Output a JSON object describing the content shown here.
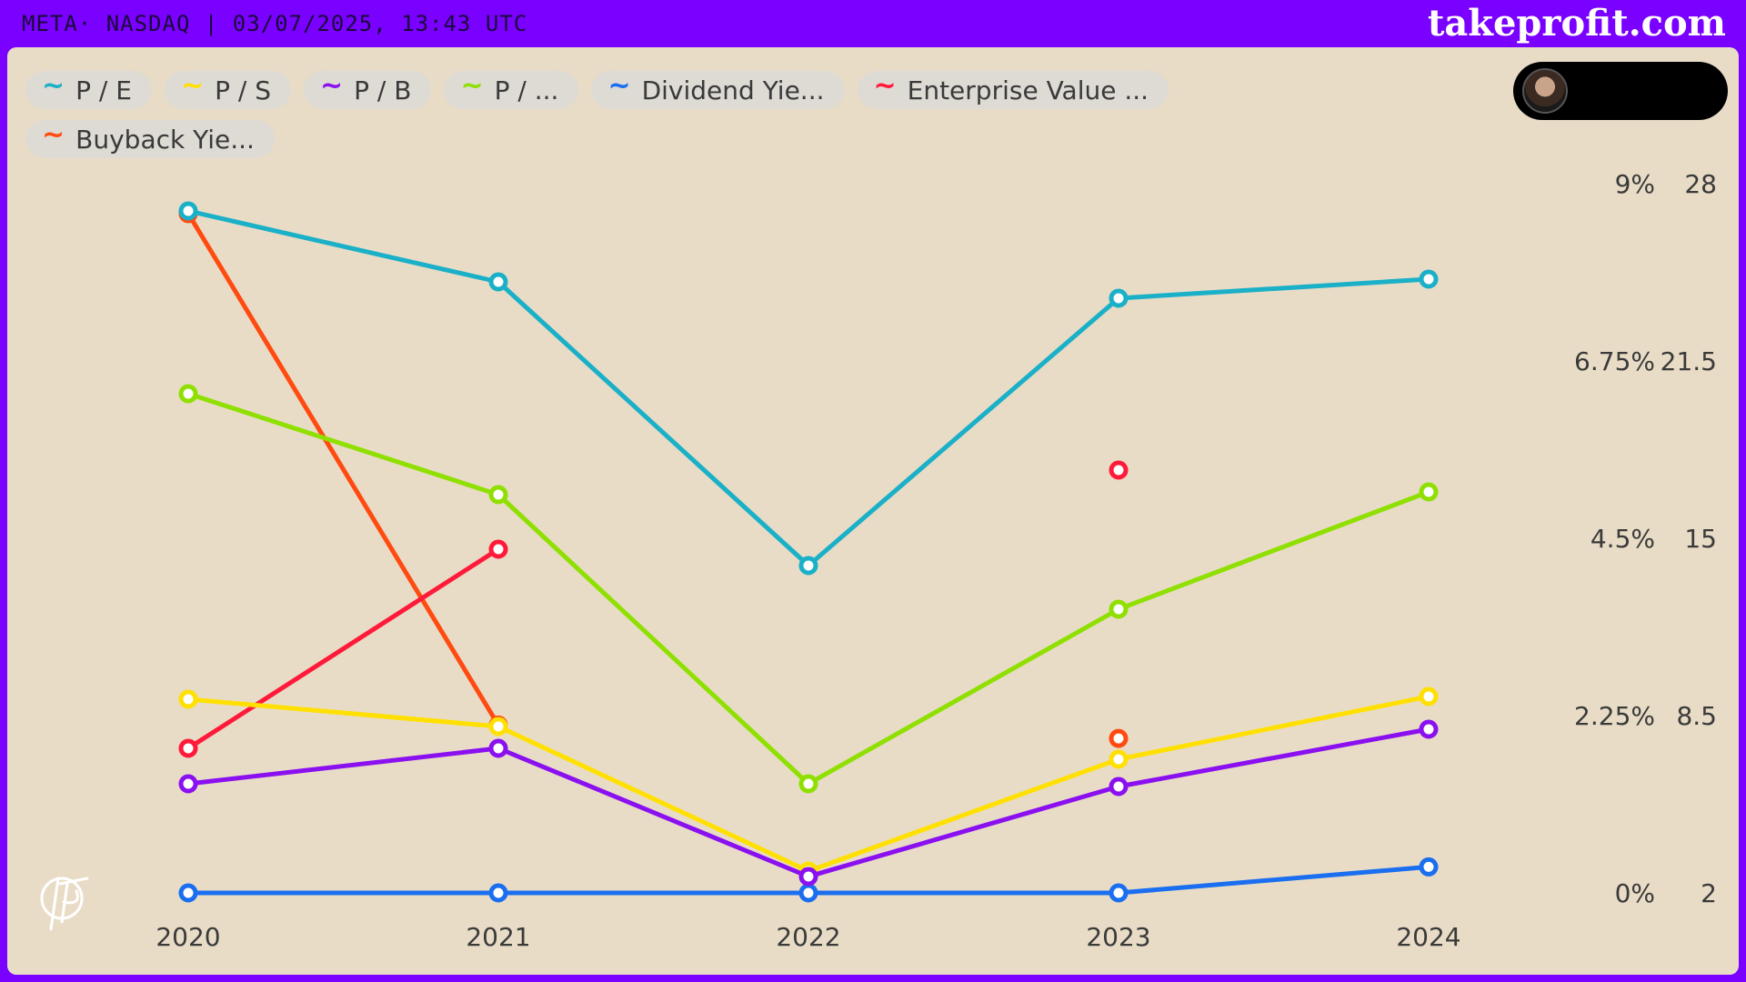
{
  "header": {
    "ticker": "META· NASDAQ | 03/07/2025, 13:43 UTC",
    "brand": "takeprofit.com"
  },
  "legend": [
    {
      "label": "P / E",
      "color": "#1ab0c8",
      "icon": "tilde-icon"
    },
    {
      "label": "P / S",
      "color": "#ffe000",
      "icon": "tilde-icon"
    },
    {
      "label": "P / B",
      "color": "#8a10f0",
      "icon": "tilde-icon"
    },
    {
      "label": "P / ...",
      "color": "#8fe000",
      "icon": "tilde-icon"
    },
    {
      "label": "Dividend Yie...",
      "color": "#1a6ef0",
      "icon": "tilde-icon"
    },
    {
      "label": "Enterprise Value ...",
      "color": "#ff1a3a",
      "icon": "tilde-icon"
    },
    {
      "label": "Buyback Yie...",
      "color": "#ff4a10",
      "icon": "tilde-icon"
    }
  ],
  "chart_data": {
    "type": "line",
    "x": [
      "2020",
      "2021",
      "2022",
      "2023",
      "2024"
    ],
    "y_axis_left_ticks": [
      "9%",
      "6.75%",
      "4.5%",
      "2.25%",
      "0%"
    ],
    "y_axis_left_range": [
      0,
      9
    ],
    "y_axis_right_ticks": [
      "28",
      "21.5",
      "15",
      "8.5",
      "2"
    ],
    "y_axis_right_range": [
      2,
      28
    ],
    "series": [
      {
        "name": "P / E",
        "axis": "right",
        "color": "#1ab0c8",
        "values": [
          27.0,
          24.4,
          14.0,
          23.8,
          24.5
        ]
      },
      {
        "name": "P / S",
        "axis": "right",
        "color": "#ffe000",
        "values": [
          9.1,
          8.1,
          2.8,
          6.9,
          9.2
        ]
      },
      {
        "name": "P / B",
        "axis": "right",
        "color": "#8a10f0",
        "values": [
          6.0,
          7.3,
          2.6,
          5.9,
          8.0
        ]
      },
      {
        "name": "P / ...",
        "axis": "right",
        "color": "#8fe000",
        "values": [
          20.3,
          16.6,
          6.0,
          12.4,
          16.7
        ]
      },
      {
        "name": "Dividend Yie...",
        "axis": "left",
        "color": "#1a6ef0",
        "values": [
          0,
          0,
          0,
          0,
          0.33
        ]
      },
      {
        "name": "Enterprise Value ...",
        "axis": "right",
        "color": "#ff1a3a",
        "values": [
          7.3,
          14.6,
          null,
          17.5,
          null
        ]
      },
      {
        "name": "Buyback Yie...",
        "axis": "left",
        "color": "#ff4a10",
        "values": [
          8.62,
          2.13,
          null,
          1.96,
          null
        ]
      }
    ],
    "grid": false,
    "legend_position": "top-left"
  }
}
